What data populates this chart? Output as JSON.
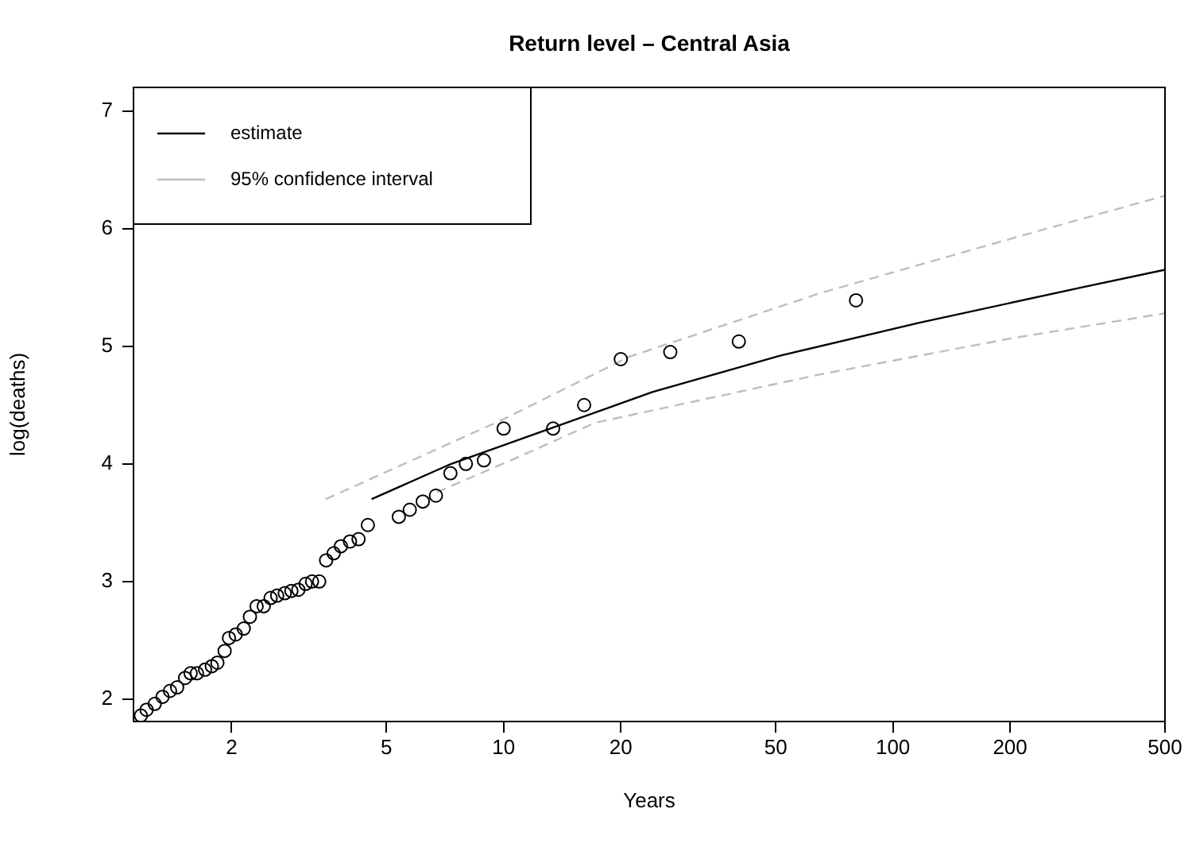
{
  "chart_data": {
    "type": "scatter",
    "title": "Return level – Central Asia",
    "xlabel": "Years",
    "ylabel": "log(deaths)",
    "log": "x",
    "xlim": [
      1.12,
      500
    ],
    "xticks": [
      2,
      5,
      10,
      20,
      50,
      100,
      200,
      500
    ],
    "ylim": [
      1.81,
      7.2
    ],
    "yticks": [
      2,
      3,
      4,
      5,
      6,
      7
    ],
    "grid": false,
    "legend": "top left",
    "series": [
      {
        "type": "scatter",
        "marker": "circle",
        "color": "#000000",
        "x": [
          1.17,
          1.21,
          1.27,
          1.33,
          1.39,
          1.45,
          1.52,
          1.57,
          1.63,
          1.71,
          1.78,
          1.84,
          1.92,
          1.97,
          2.05,
          2.15,
          2.23,
          2.32,
          2.42,
          2.52,
          2.62,
          2.74,
          2.85,
          2.97,
          3.1,
          3.22,
          3.36,
          3.5,
          3.66,
          3.82,
          4.03,
          4.24,
          4.48,
          5.38,
          5.74,
          6.2,
          6.7,
          7.3,
          8.0,
          8.9,
          10,
          13.4,
          16.1,
          20,
          26.8,
          40.2,
          80.4
        ],
        "values": [
          1.86,
          1.91,
          1.96,
          2.02,
          2.07,
          2.1,
          2.18,
          2.22,
          2.22,
          2.25,
          2.28,
          2.31,
          2.41,
          2.52,
          2.55,
          2.6,
          2.7,
          2.79,
          2.79,
          2.86,
          2.88,
          2.9,
          2.92,
          2.93,
          2.98,
          3.0,
          3.0,
          3.18,
          3.24,
          3.3,
          3.34,
          3.36,
          3.48,
          3.55,
          3.61,
          3.68,
          3.73,
          3.92,
          4.0,
          4.03,
          4.3,
          4.3,
          4.5,
          4.89,
          4.95,
          5.04,
          5.39
        ]
      },
      {
        "type": "line",
        "name": "estimate",
        "color": "#000000",
        "line_style": "solid",
        "x": [
          4.58,
          7.33,
          24.1,
          51.3,
          117,
          306,
          500
        ],
        "values": [
          3.7,
          4.0,
          4.61,
          4.92,
          5.2,
          5.5,
          5.65
        ]
      },
      {
        "type": "line",
        "name": "95% confidence interval",
        "color": "#bebebe",
        "line_style": "dashed",
        "x": [
          3.49,
          10,
          21,
          64.9,
          204,
          500
        ],
        "values": [
          3.7,
          4.38,
          4.91,
          5.45,
          5.92,
          6.28
        ]
      },
      {
        "type": "line",
        "color": "#bebebe",
        "line_style": "dashed",
        "x": [
          6.74,
          10.6,
          17.2,
          64.9,
          204,
          500
        ],
        "values": [
          3.76,
          4.04,
          4.35,
          4.76,
          5.07,
          5.28
        ]
      }
    ]
  }
}
